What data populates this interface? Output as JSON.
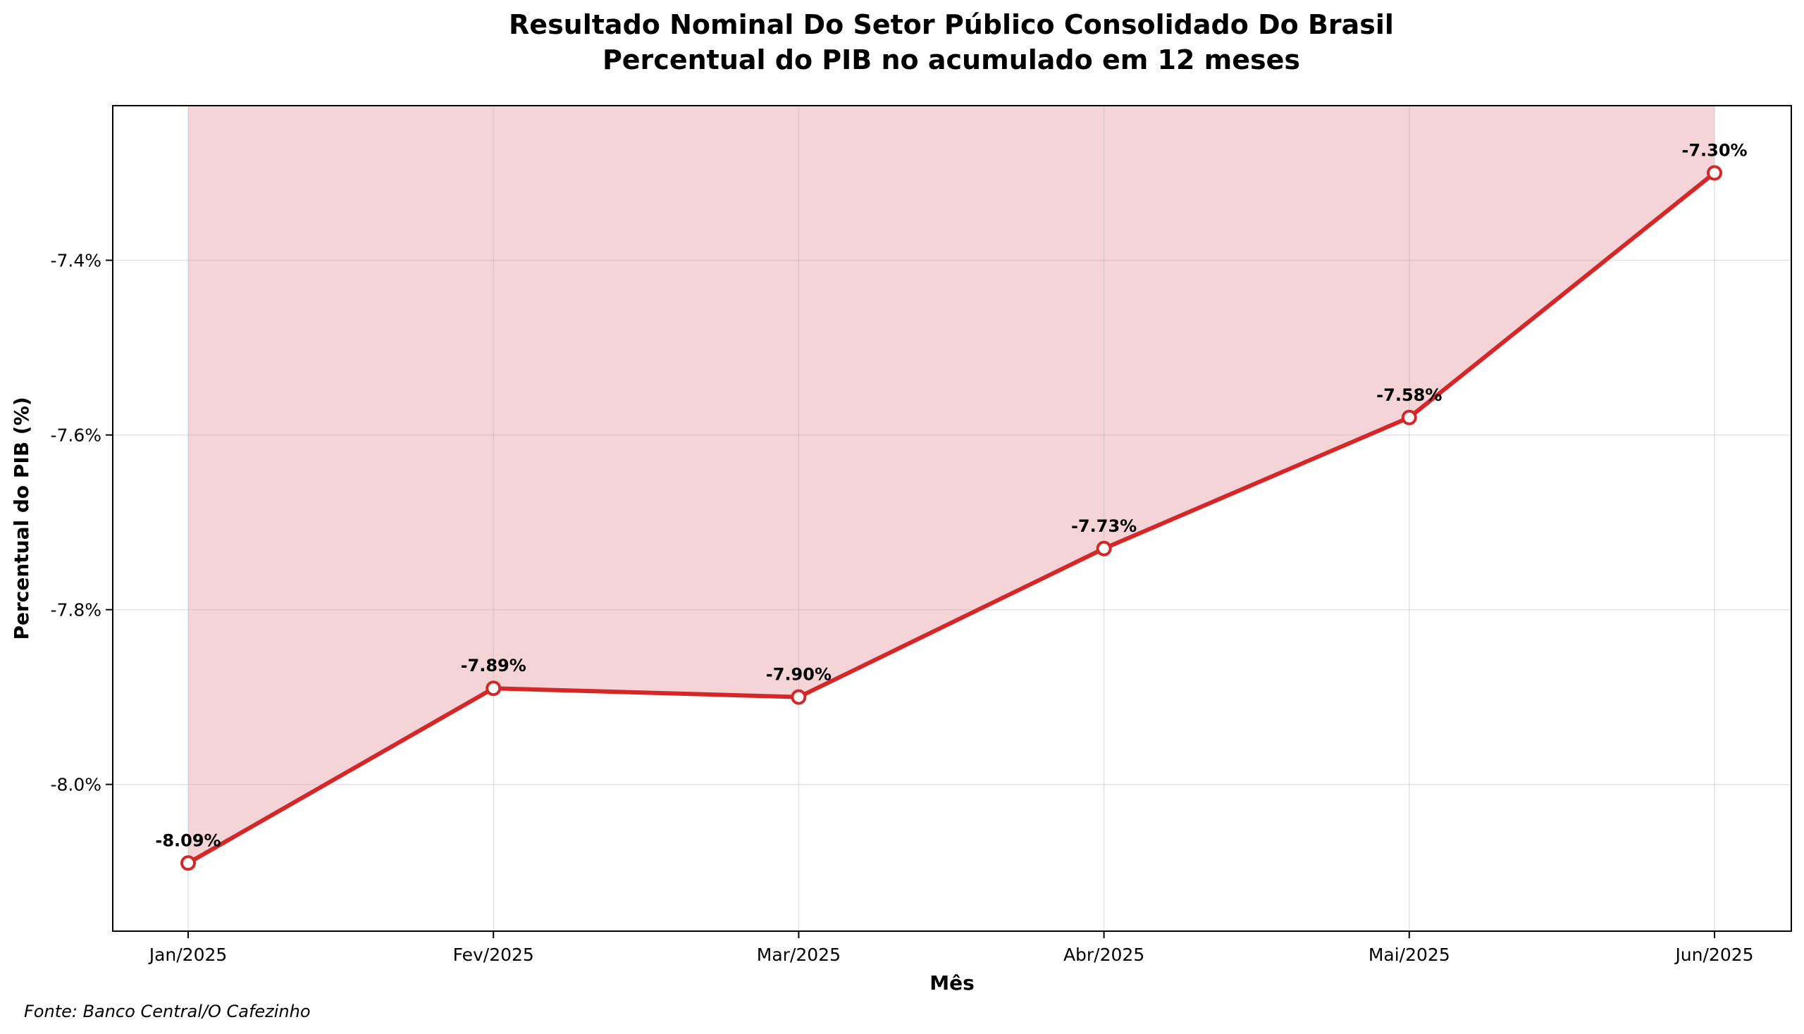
{
  "chart_data": {
    "type": "line",
    "title": "Resultado Nominal Do Setor Público Consolidado Do Brasil",
    "subtitle": "Percentual do PIB no acumulado em 12 meses",
    "xlabel": "Mês",
    "ylabel": "Percentual do PIB (%)",
    "categories": [
      "Jan/2025",
      "Fev/2025",
      "Mar/2025",
      "Abr/2025",
      "Mai/2025",
      "Jun/2025"
    ],
    "series": [
      {
        "values": [
          -8.09,
          -7.89,
          -7.9,
          -7.73,
          -7.58,
          -7.3
        ],
        "labels": [
          "-8.09%",
          "-7.89%",
          "-7.90%",
          "-7.73%",
          "-7.58%",
          "-7.30%"
        ],
        "color": "#d62728"
      }
    ],
    "ylim": [
      -8.168,
      -7.223
    ],
    "yticks": [
      -8.0,
      -7.8,
      -7.6,
      -7.4
    ],
    "ytick_labels": [
      "-8.0%",
      "-7.8%",
      "-7.6%",
      "-7.4%"
    ],
    "fill_color": "#f5d4d7",
    "grid": true,
    "fill": "above-line"
  },
  "footer": {
    "source": "Fonte: Banco Central/O Cafezinho"
  }
}
